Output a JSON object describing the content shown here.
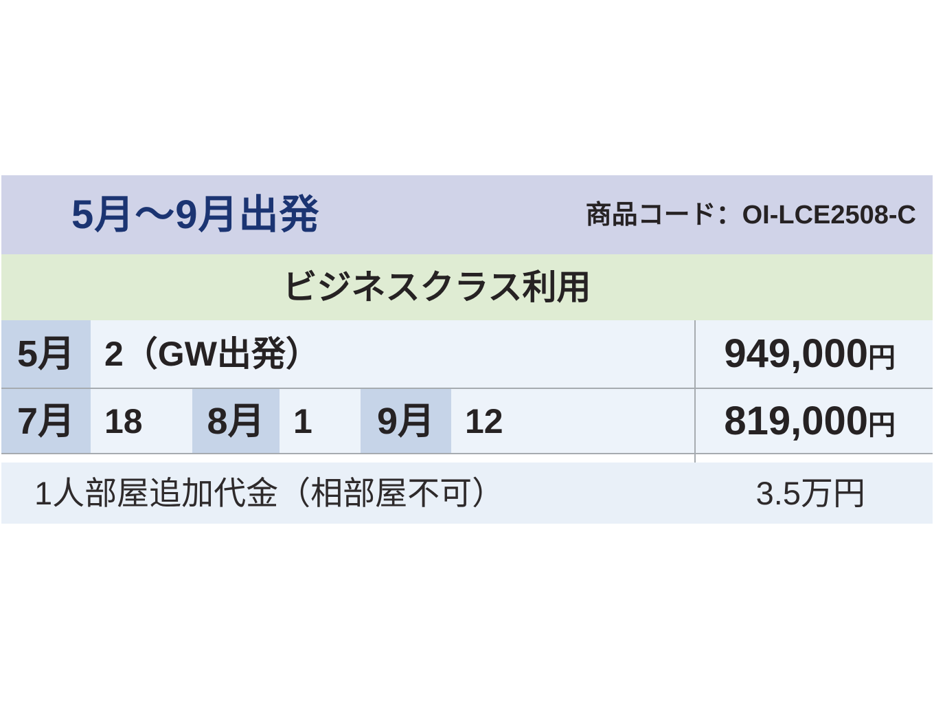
{
  "table": {
    "header": {
      "title": "5月～9月出発",
      "product_code": "商品コード：OI-LCE2508-C"
    },
    "cabin_class": "ビジネスクラス利用",
    "rows": [
      {
        "cells": [
          {
            "text": "5月"
          },
          {
            "text": "2（GW出発）"
          }
        ],
        "price": "949,000",
        "unit": "円"
      },
      {
        "cells": [
          {
            "text": "7月"
          },
          {
            "text": "18"
          },
          {
            "text": "8月"
          },
          {
            "text": "1"
          },
          {
            "text": "9月"
          },
          {
            "text": "12"
          }
        ],
        "price": "819,000",
        "unit": "円"
      }
    ],
    "single_room": {
      "label": "1人部屋追加代金（相部屋不可）",
      "price": "3.5万円"
    },
    "colors": {
      "header_bg": "#d0d3e8",
      "cabin_class_bg": "#dfecd3",
      "month_cell_bg": "#c6d4e8",
      "date_row_bg": "#edf3fa",
      "note_row_bg": "#e9f0f8",
      "title_navy": "#1b3472",
      "text_black": "#262223",
      "grid_line": "#a6abb0"
    }
  }
}
